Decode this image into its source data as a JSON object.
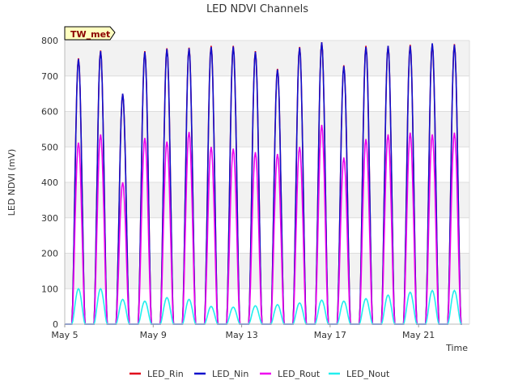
{
  "chart_data": {
    "type": "line",
    "title": "LED NDVI Channels",
    "xlabel": "Time",
    "ylabel": "LED NDVI (mV)",
    "badge": "TW_met",
    "ylim": [
      0,
      800
    ],
    "yticks": [
      0,
      100,
      200,
      300,
      400,
      500,
      600,
      700,
      800
    ],
    "xlim_days": [
      5,
      23.3
    ],
    "xticks": [
      {
        "label": "May 5",
        "day": 5
      },
      {
        "label": "May 9",
        "day": 9
      },
      {
        "label": "May 13",
        "day": 13
      },
      {
        "label": "May 17",
        "day": 17
      },
      {
        "label": "May 21",
        "day": 21
      }
    ],
    "grid": true,
    "legend_position": "bottom-center",
    "daily_peak_days": [
      5.62,
      6.62,
      7.62,
      8.62,
      9.62,
      10.62,
      11.62,
      12.62,
      13.62,
      14.62,
      15.62,
      16.62,
      17.62,
      18.62,
      19.62,
      20.62,
      21.62,
      22.62
    ],
    "series": [
      {
        "name": "LED_Rin",
        "color": "#e0001b",
        "daily_peaks": [
          750,
          772,
          650,
          770,
          778,
          780,
          785,
          785,
          770,
          720,
          782,
          795,
          730,
          785,
          785,
          788,
          790,
          790
        ]
      },
      {
        "name": "LED_Nin",
        "color": "#1010cc",
        "daily_peaks": [
          748,
          770,
          650,
          768,
          776,
          778,
          782,
          783,
          768,
          718,
          780,
          795,
          728,
          782,
          785,
          785,
          792,
          788
        ]
      },
      {
        "name": "LED_Rout",
        "color": "#ee00ee",
        "daily_peaks": [
          512,
          535,
          400,
          525,
          515,
          542,
          500,
          495,
          485,
          480,
          500,
          562,
          470,
          522,
          535,
          540,
          535,
          540
        ]
      },
      {
        "name": "LED_Nout",
        "color": "#22eeee",
        "daily_peaks": [
          100,
          100,
          70,
          65,
          75,
          70,
          50,
          48,
          52,
          55,
          60,
          68,
          65,
          72,
          82,
          90,
          95,
          95
        ]
      }
    ]
  }
}
